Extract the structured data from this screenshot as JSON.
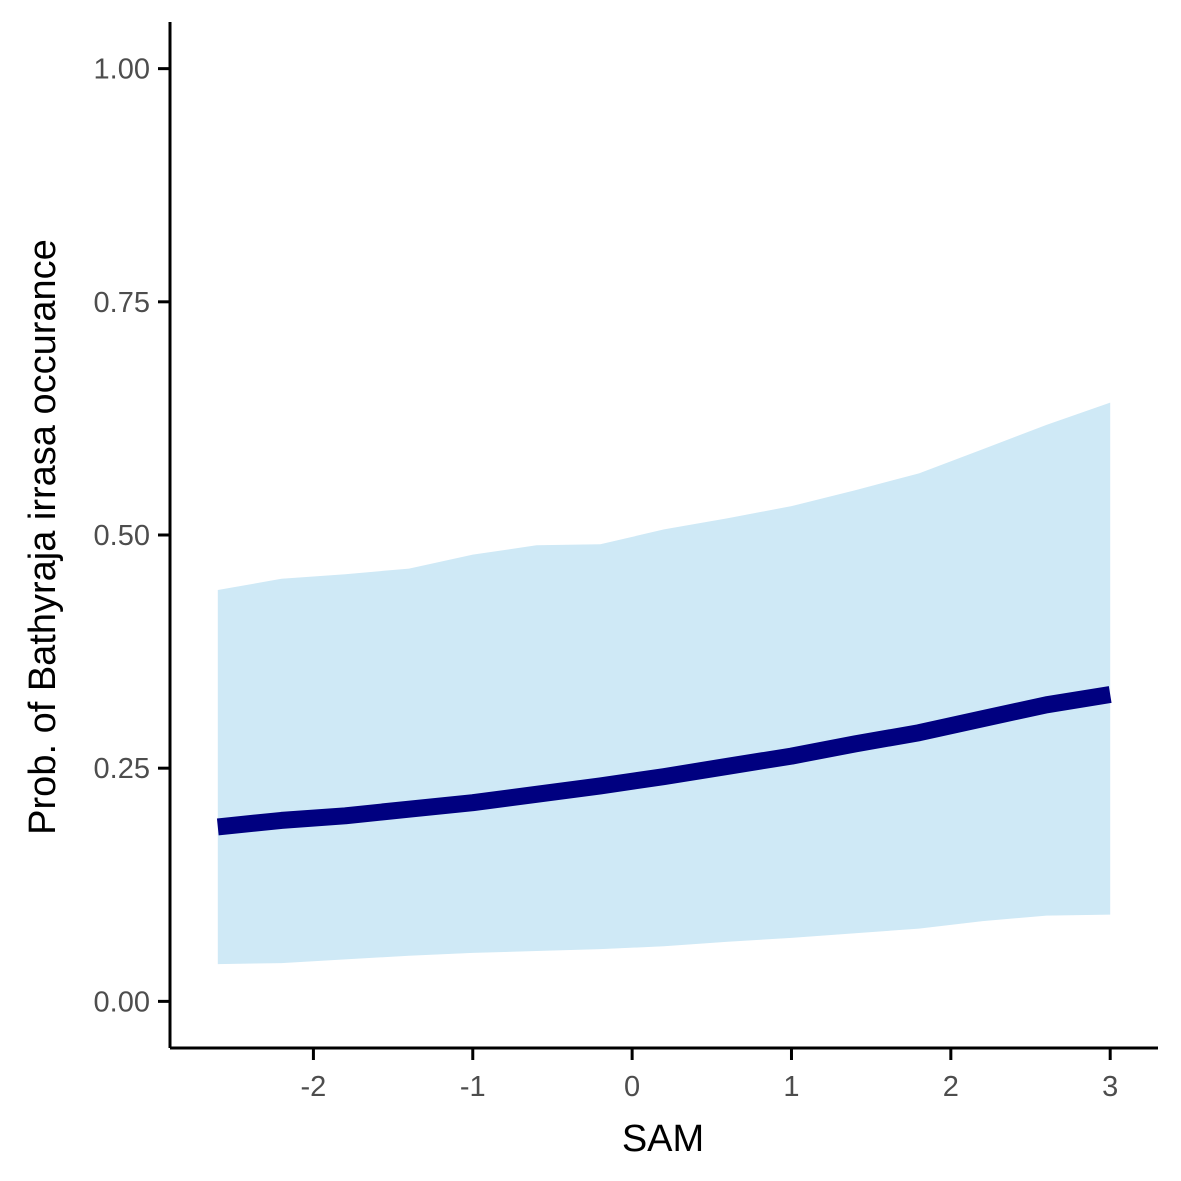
{
  "chart_data": {
    "type": "line",
    "title": "",
    "xlabel": "SAM",
    "ylabel": "Prob. of  Bathyraja irrasa  occurance",
    "xlim": [
      -2.9,
      3.3
    ],
    "ylim": [
      -0.05,
      1.05
    ],
    "x_ticks": [
      -2,
      -1,
      0,
      1,
      2,
      3
    ],
    "x_tick_labels": [
      "-2",
      "-1",
      "0",
      "1",
      "2",
      "3"
    ],
    "y_ticks": [
      0,
      0.25,
      0.5,
      0.75,
      1.0
    ],
    "y_tick_labels": [
      "0.00",
      "0.25",
      "0.50",
      "0.75",
      "1.00"
    ],
    "grid": false,
    "legend": "none",
    "colors": {
      "line": "#000080",
      "ribbon": "#cfe9f6",
      "axis": "#000000",
      "tick_text": "#4d4d4d"
    },
    "series": [
      {
        "x": [
          -2.6,
          -2.2,
          -1.8,
          -1.4,
          -1.0,
          -0.6,
          -0.2,
          0.2,
          0.6,
          1.0,
          1.4,
          1.8,
          2.2,
          2.6,
          3.0
        ],
        "y": [
          0.187,
          0.194,
          0.199,
          0.206,
          0.213,
          0.222,
          0.231,
          0.241,
          0.252,
          0.263,
          0.276,
          0.288,
          0.303,
          0.318,
          0.329
        ],
        "lower": [
          0.04,
          0.041,
          0.045,
          0.049,
          0.052,
          0.054,
          0.056,
          0.059,
          0.064,
          0.068,
          0.073,
          0.078,
          0.086,
          0.092,
          0.093
        ],
        "upper": [
          0.441,
          0.453,
          0.458,
          0.464,
          0.479,
          0.489,
          0.49,
          0.506,
          0.518,
          0.531,
          0.548,
          0.566,
          0.592,
          0.618,
          0.642
        ]
      }
    ]
  }
}
